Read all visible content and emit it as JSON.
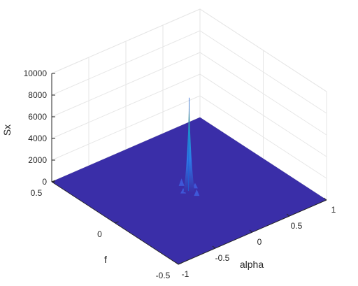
{
  "chart_data": {
    "type": "surface",
    "title": "",
    "xlabel": "alpha",
    "ylabel": "f",
    "zlabel": "Sx",
    "xlim": [
      -1,
      1
    ],
    "ylim": [
      -0.5,
      0.5
    ],
    "zlim": [
      0,
      10000
    ],
    "grid": true,
    "colormap": "parula",
    "x_ticks": [
      "-1",
      "-0.5",
      "0",
      "0.5",
      "1"
    ],
    "y_ticks": [
      "-0.5",
      "0",
      "0.5"
    ],
    "z_ticks": [
      "0",
      "2000",
      "4000",
      "6000",
      "8000",
      "10000"
    ],
    "peak": {
      "alpha": 0,
      "f": 0,
      "Sx": 8600
    },
    "baseline_Sx": 0,
    "side_lobes": [
      {
        "alpha": 0,
        "f": 0.06,
        "Sx": 700
      },
      {
        "alpha": 0,
        "f": -0.06,
        "Sx": 600
      },
      {
        "alpha": 0.08,
        "f": 0,
        "Sx": 500
      },
      {
        "alpha": -0.08,
        "f": 0,
        "Sx": 500
      }
    ]
  },
  "colors": {
    "surface_low": "#3a2ea8",
    "surface_mid": "#1ba3c6",
    "surface_high": "#f9fb0e",
    "grid": "#e6e6e6",
    "axis": "#262626"
  }
}
